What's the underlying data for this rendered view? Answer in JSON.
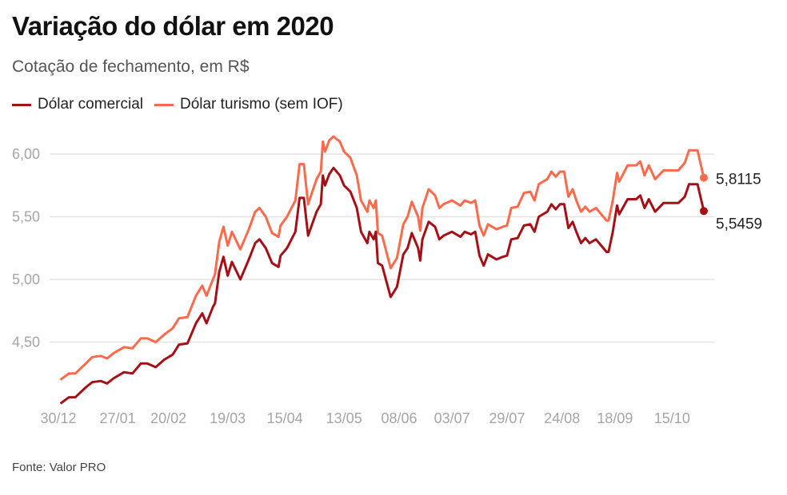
{
  "title": "Variação do dólar em 2020",
  "subtitle": "Cotação de fechamento, em R$",
  "source": "Fonte: Valor PRO",
  "chart_data": {
    "type": "line",
    "title": "Variação do dólar em 2020",
    "subtitle": "Cotação de fechamento, em R$",
    "xlabel": "",
    "ylabel": "",
    "grid": true,
    "legend_position": "top-left",
    "ylim": [
      4.0,
      6.2
    ],
    "y_ticks": [
      4.5,
      5.0,
      5.5,
      6.0
    ],
    "y_tick_labels": [
      "4,50",
      "5,00",
      "5,50",
      "6,00"
    ],
    "x_range": [
      "2019-12-30",
      "2020-10-30"
    ],
    "x_ticks": [
      "2019-12-30",
      "2020-01-27",
      "2020-02-20",
      "2020-03-19",
      "2020-04-15",
      "2020-05-13",
      "2020-06-08",
      "2020-07-03",
      "2020-07-29",
      "2020-08-24",
      "2020-09-18",
      "2020-10-15"
    ],
    "x_tick_labels": [
      "30/12",
      "27/01",
      "20/02",
      "19/03",
      "15/04",
      "13/05",
      "08/06",
      "03/07",
      "29/07",
      "24/08",
      "18/09",
      "15/10"
    ],
    "x": [
      "2019-12-31",
      "2020-01-04",
      "2020-01-07",
      "2020-01-12",
      "2020-01-15",
      "2020-01-19",
      "2020-01-22",
      "2020-01-25",
      "2020-01-30",
      "2020-02-03",
      "2020-02-07",
      "2020-02-10",
      "2020-02-14",
      "2020-02-18",
      "2020-02-22",
      "2020-02-25",
      "2020-02-29",
      "2020-03-04",
      "2020-03-07",
      "2020-03-09",
      "2020-03-12",
      "2020-03-13",
      "2020-03-15",
      "2020-03-17",
      "2020-03-19",
      "2020-03-21",
      "2020-03-25",
      "2020-03-29",
      "2020-04-01",
      "2020-04-03",
      "2020-04-06",
      "2020-04-09",
      "2020-04-12",
      "2020-04-13",
      "2020-04-16",
      "2020-04-20",
      "2020-04-22",
      "2020-04-24",
      "2020-04-26",
      "2020-04-30",
      "2020-05-02",
      "2020-05-03",
      "2020-05-04",
      "2020-05-06",
      "2020-05-08",
      "2020-05-11",
      "2020-05-13",
      "2020-05-16",
      "2020-05-19",
      "2020-05-21",
      "2020-05-24",
      "2020-05-25",
      "2020-05-27",
      "2020-05-28",
      "2020-05-29",
      "2020-05-31",
      "2020-06-04",
      "2020-06-07",
      "2020-06-10",
      "2020-06-12",
      "2020-06-14",
      "2020-06-17",
      "2020-06-18",
      "2020-06-19",
      "2020-06-22",
      "2020-06-25",
      "2020-06-27",
      "2020-06-29",
      "2020-07-03",
      "2020-07-07",
      "2020-07-09",
      "2020-07-12",
      "2020-07-14",
      "2020-07-16",
      "2020-07-18",
      "2020-07-20",
      "2020-07-24",
      "2020-07-27",
      "2020-07-29",
      "2020-07-31",
      "2020-08-03",
      "2020-08-06",
      "2020-08-09",
      "2020-08-11",
      "2020-08-13",
      "2020-08-17",
      "2020-08-19",
      "2020-08-21",
      "2020-08-23",
      "2020-08-25",
      "2020-08-27",
      "2020-08-29",
      "2020-08-31",
      "2020-09-02",
      "2020-09-04",
      "2020-09-06",
      "2020-09-09",
      "2020-09-11",
      "2020-09-14",
      "2020-09-15",
      "2020-09-17",
      "2020-09-19",
      "2020-09-20",
      "2020-09-24",
      "2020-09-28",
      "2020-09-30",
      "2020-10-02",
      "2020-10-04",
      "2020-10-07",
      "2020-10-11",
      "2020-10-14",
      "2020-10-18",
      "2020-10-21",
      "2020-10-23",
      "2020-10-27",
      "2020-10-30"
    ],
    "series": [
      {
        "name": "Dólar comercial",
        "color": "#a50f15",
        "end_label": "5,5459",
        "values": [
          4.01,
          4.06,
          4.06,
          4.14,
          4.18,
          4.19,
          4.17,
          4.21,
          4.26,
          4.25,
          4.33,
          4.33,
          4.3,
          4.36,
          4.4,
          4.48,
          4.49,
          4.65,
          4.73,
          4.65,
          4.78,
          4.81,
          5.06,
          5.18,
          5.03,
          5.14,
          5.0,
          5.16,
          5.29,
          5.32,
          5.25,
          5.13,
          5.1,
          5.19,
          5.25,
          5.38,
          5.65,
          5.65,
          5.35,
          5.54,
          5.6,
          5.83,
          5.75,
          5.84,
          5.89,
          5.83,
          5.75,
          5.7,
          5.57,
          5.38,
          5.29,
          5.38,
          5.32,
          5.38,
          5.13,
          5.11,
          4.86,
          4.94,
          5.2,
          5.25,
          5.37,
          5.25,
          5.15,
          5.32,
          5.46,
          5.42,
          5.32,
          5.35,
          5.38,
          5.34,
          5.38,
          5.36,
          5.38,
          5.19,
          5.11,
          5.2,
          5.16,
          5.18,
          5.19,
          5.32,
          5.33,
          5.43,
          5.44,
          5.38,
          5.5,
          5.54,
          5.6,
          5.56,
          5.6,
          5.6,
          5.41,
          5.46,
          5.37,
          5.29,
          5.33,
          5.29,
          5.32,
          5.28,
          5.22,
          5.22,
          5.38,
          5.59,
          5.52,
          5.64,
          5.64,
          5.67,
          5.57,
          5.64,
          5.54,
          5.61,
          5.61,
          5.61,
          5.66,
          5.76,
          5.76,
          5.5459
        ]
      },
      {
        "name": "Dólar turismo (sem IOF)",
        "color": "#fb6a4a",
        "end_label": "5,8115",
        "values": [
          4.2,
          4.25,
          4.25,
          4.33,
          4.38,
          4.39,
          4.37,
          4.41,
          4.46,
          4.45,
          4.53,
          4.53,
          4.5,
          4.56,
          4.61,
          4.69,
          4.7,
          4.87,
          4.95,
          4.87,
          5.0,
          5.04,
          5.3,
          5.42,
          5.27,
          5.38,
          5.24,
          5.4,
          5.54,
          5.57,
          5.5,
          5.37,
          5.34,
          5.43,
          5.5,
          5.63,
          5.92,
          5.92,
          5.6,
          5.8,
          5.86,
          6.1,
          6.02,
          6.11,
          6.14,
          6.1,
          6.02,
          5.97,
          5.83,
          5.63,
          5.54,
          5.63,
          5.57,
          5.63,
          5.37,
          5.35,
          5.09,
          5.17,
          5.44,
          5.5,
          5.62,
          5.5,
          5.39,
          5.57,
          5.72,
          5.67,
          5.57,
          5.6,
          5.63,
          5.59,
          5.63,
          5.61,
          5.63,
          5.43,
          5.35,
          5.44,
          5.4,
          5.42,
          5.43,
          5.57,
          5.58,
          5.69,
          5.7,
          5.63,
          5.76,
          5.8,
          5.86,
          5.82,
          5.86,
          5.86,
          5.66,
          5.72,
          5.62,
          5.54,
          5.58,
          5.54,
          5.57,
          5.53,
          5.47,
          5.47,
          5.63,
          5.85,
          5.78,
          5.91,
          5.91,
          5.94,
          5.83,
          5.91,
          5.8,
          5.87,
          5.87,
          5.87,
          5.93,
          6.03,
          6.03,
          5.8115
        ]
      }
    ]
  }
}
